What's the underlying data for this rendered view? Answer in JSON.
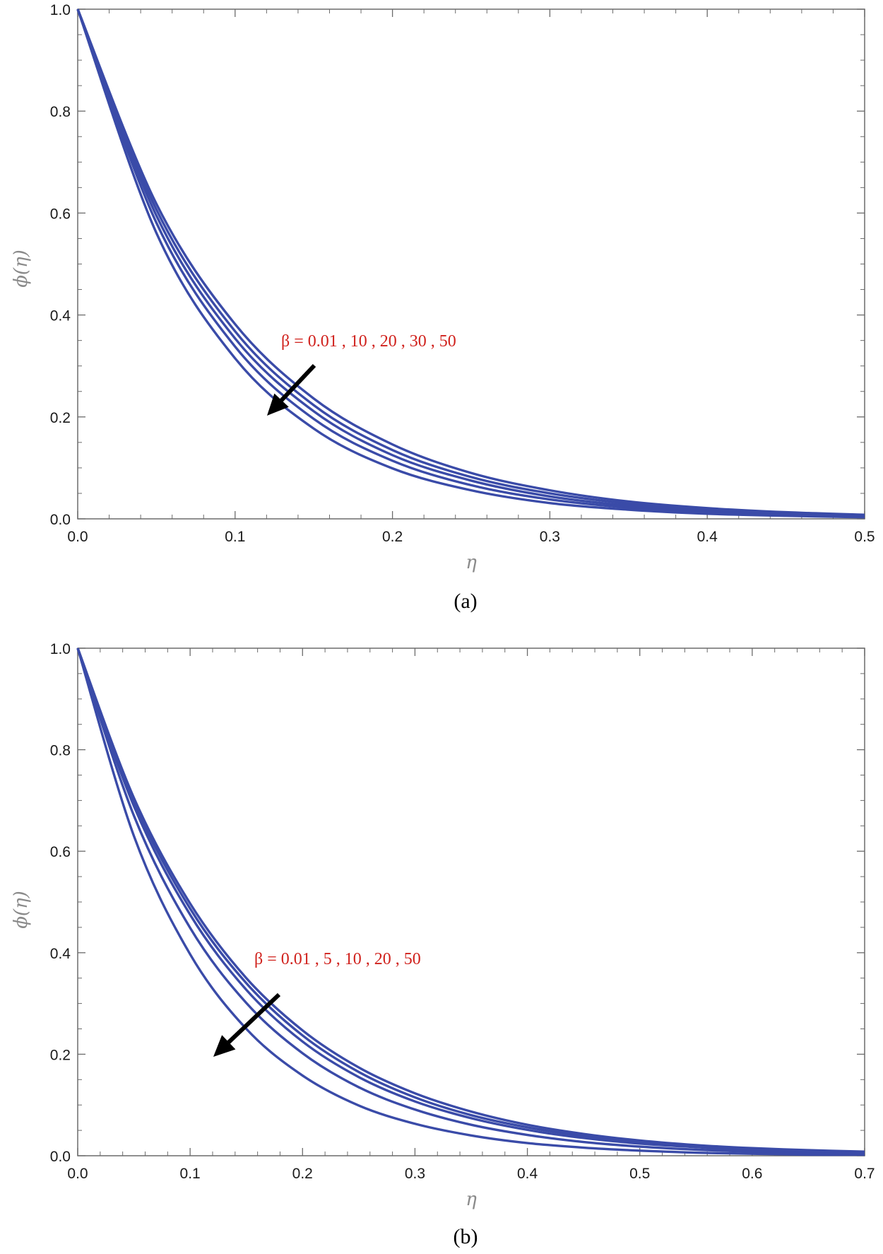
{
  "chart_data": [
    {
      "type": "line",
      "panel_label": "(a)",
      "xlabel": "η",
      "ylabel": "ϕ(η)",
      "xlim": [
        0,
        0.5
      ],
      "ylim": [
        0,
        1
      ],
      "xticks": [
        "0.0",
        "0.1",
        "0.2",
        "0.3",
        "0.4",
        "0.5"
      ],
      "yticks": [
        "0.0",
        "0.2",
        "0.4",
        "0.6",
        "0.8",
        "1.0"
      ],
      "annotation": "β = 0.01 , 10 , 20 , 30 , 50",
      "line_color": "#3a4ba8",
      "annotation_color": "#d0211c",
      "x": [
        0,
        0.05,
        0.1,
        0.15,
        0.2,
        0.25,
        0.3,
        0.35,
        0.4,
        0.45,
        0.5
      ],
      "series": [
        {
          "values": [
            1.0,
            0.618,
            0.382,
            0.236,
            0.146,
            0.09,
            0.056,
            0.034,
            0.021,
            0.013,
            0.008
          ]
        },
        {
          "values": [
            1.0,
            0.607,
            0.368,
            0.223,
            0.135,
            0.082,
            0.05,
            0.03,
            0.018,
            0.011,
            0.007
          ]
        },
        {
          "values": [
            1.0,
            0.595,
            0.354,
            0.211,
            0.125,
            0.075,
            0.044,
            0.026,
            0.016,
            0.009,
            0.006
          ]
        },
        {
          "values": [
            1.0,
            0.581,
            0.338,
            0.196,
            0.114,
            0.066,
            0.038,
            0.022,
            0.013,
            0.008,
            0.004
          ]
        },
        {
          "values": [
            1.0,
            0.561,
            0.315,
            0.177,
            0.099,
            0.056,
            0.031,
            0.018,
            0.01,
            0.006,
            0.003
          ]
        }
      ]
    },
    {
      "type": "line",
      "panel_label": "(b)",
      "xlabel": "η",
      "ylabel": "ϕ(η)",
      "xlim": [
        0,
        0.7
      ],
      "ylim": [
        0,
        1
      ],
      "xticks": [
        "0.0",
        "0.1",
        "0.2",
        "0.3",
        "0.4",
        "0.5",
        "0.6",
        "0.7"
      ],
      "yticks": [
        "0.0",
        "0.2",
        "0.4",
        "0.6",
        "0.8",
        "1.0"
      ],
      "annotation": "β = 0.01 , 5 , 10 , 20 , 50",
      "line_color": "#3a4ba8",
      "annotation_color": "#d0211c",
      "x": [
        0,
        0.05,
        0.1,
        0.15,
        0.2,
        0.25,
        0.3,
        0.35,
        0.4,
        0.45,
        0.5,
        0.55,
        0.6,
        0.65,
        0.7
      ],
      "series": [
        {
          "values": [
            1.0,
            0.705,
            0.497,
            0.35,
            0.247,
            0.174,
            0.123,
            0.087,
            0.061,
            0.043,
            0.03,
            0.021,
            0.015,
            0.011,
            0.008
          ]
        },
        {
          "values": [
            1.0,
            0.698,
            0.487,
            0.34,
            0.237,
            0.165,
            0.115,
            0.08,
            0.056,
            0.039,
            0.027,
            0.019,
            0.013,
            0.009,
            0.006
          ]
        },
        {
          "values": [
            1.0,
            0.689,
            0.475,
            0.327,
            0.225,
            0.155,
            0.107,
            0.074,
            0.051,
            0.035,
            0.024,
            0.017,
            0.011,
            0.008,
            0.005
          ]
        },
        {
          "values": [
            1.0,
            0.67,
            0.449,
            0.301,
            0.202,
            0.135,
            0.091,
            0.061,
            0.041,
            0.027,
            0.018,
            0.012,
            0.008,
            0.005,
            0.004
          ]
        },
        {
          "values": [
            1.0,
            0.63,
            0.397,
            0.25,
            0.158,
            0.099,
            0.063,
            0.04,
            0.025,
            0.016,
            0.01,
            0.006,
            0.004,
            0.002,
            0.002
          ]
        }
      ]
    }
  ]
}
